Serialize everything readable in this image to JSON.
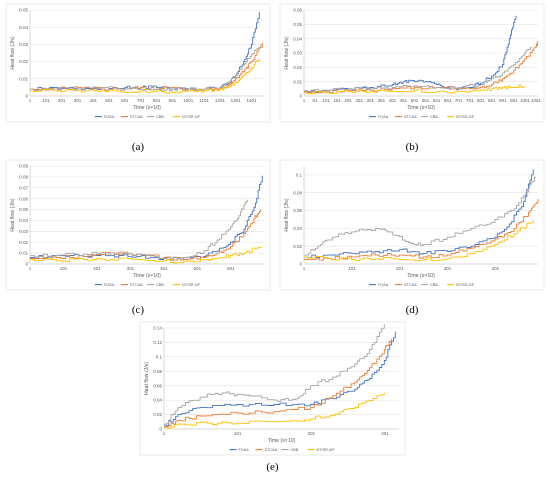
{
  "colors": {
    "s1": "#4472C4",
    "s2": "#ED7D31",
    "s3": "#A5A5A5",
    "s4": "#FFC000"
  },
  "chart_data": [
    {
      "id": "a",
      "type": "line",
      "label": "(a)",
      "ylabel": "Heat flow (J/s)",
      "xlabel": "Time (s×10)",
      "ylim": [
        0,
        0.05
      ],
      "yticks": [
        0,
        0.01,
        0.02,
        0.03,
        0.04,
        0.05
      ],
      "xlim": [
        1,
        1480
      ],
      "xticks": [
        1,
        101,
        201,
        301,
        401,
        501,
        601,
        701,
        801,
        901,
        1001,
        1101,
        1201,
        1301,
        1401
      ],
      "legend": [
        "FOAA",
        "STCAA",
        "CBB",
        "NT/SR-0/F"
      ],
      "legend_position": "bottom",
      "series": [
        {
          "name": "FOAA",
          "x": [
            1,
            150,
            300,
            450,
            600,
            700,
            800,
            900,
            1000,
            1100,
            1200,
            1250,
            1300,
            1350,
            1400,
            1450
          ],
          "y": [
            0.004,
            0.005,
            0.004,
            0.004,
            0.005,
            0.005,
            0.005,
            0.004,
            0.004,
            0.004,
            0.005,
            0.007,
            0.012,
            0.02,
            0.03,
            0.049
          ]
        },
        {
          "name": "STCAA",
          "x": [
            1,
            150,
            300,
            450,
            600,
            700,
            800,
            900,
            1000,
            1100,
            1200,
            1250,
            1300,
            1350,
            1400,
            1470
          ],
          "y": [
            0.004,
            0.004,
            0.005,
            0.004,
            0.004,
            0.005,
            0.004,
            0.005,
            0.004,
            0.004,
            0.004,
            0.006,
            0.01,
            0.014,
            0.02,
            0.031
          ]
        },
        {
          "name": "CBB",
          "x": [
            1,
            150,
            300,
            450,
            600,
            700,
            800,
            900,
            1000,
            1100,
            1200,
            1250,
            1300,
            1350,
            1400,
            1460
          ],
          "y": [
            0.004,
            0.004,
            0.004,
            0.005,
            0.004,
            0.004,
            0.004,
            0.004,
            0.004,
            0.004,
            0.005,
            0.008,
            0.012,
            0.018,
            0.024,
            0.03
          ]
        },
        {
          "name": "NT/SR-0/F",
          "x": [
            1,
            150,
            300,
            450,
            600,
            700,
            800,
            900,
            1000,
            1100,
            1200,
            1250,
            1300,
            1350,
            1400,
            1450
          ],
          "y": [
            0.003,
            0.003,
            0.003,
            0.003,
            0.002,
            0.003,
            0.003,
            0.002,
            0.003,
            0.003,
            0.004,
            0.005,
            0.008,
            0.012,
            0.016,
            0.022
          ]
        }
      ]
    },
    {
      "id": "b",
      "type": "line",
      "label": "(b)",
      "ylabel": "Heat flow (J/s)",
      "xlabel": "Time (s×10)",
      "ylim": [
        0,
        0.06
      ],
      "yticks": [
        0,
        0.01,
        0.02,
        0.03,
        0.04,
        0.05,
        0.06
      ],
      "xlim": [
        1,
        1060
      ],
      "xticks": [
        1,
        51,
        101,
        151,
        201,
        251,
        301,
        351,
        401,
        451,
        501,
        551,
        601,
        651,
        701,
        751,
        801,
        851,
        901,
        951,
        1001,
        1051
      ],
      "legend": [
        "FOAA",
        "STCAA",
        "CBB",
        "NT/SR-0/F"
      ],
      "legend_position": "bottom",
      "series": [
        {
          "name": "FOAA",
          "x": [
            1,
            100,
            200,
            300,
            400,
            450,
            500,
            550,
            600,
            650,
            700,
            750,
            800,
            850,
            900,
            930,
            960
          ],
          "y": [
            0.003,
            0.004,
            0.005,
            0.006,
            0.008,
            0.01,
            0.01,
            0.01,
            0.008,
            0.006,
            0.005,
            0.006,
            0.009,
            0.014,
            0.022,
            0.04,
            0.056
          ]
        },
        {
          "name": "STCAA",
          "x": [
            1,
            100,
            200,
            300,
            400,
            500,
            600,
            700,
            800,
            850,
            900,
            950,
            1000,
            1050,
            1060
          ],
          "y": [
            0.003,
            0.003,
            0.004,
            0.004,
            0.005,
            0.006,
            0.006,
            0.005,
            0.006,
            0.008,
            0.012,
            0.018,
            0.026,
            0.034,
            0.038
          ]
        },
        {
          "name": "CBB",
          "x": [
            1,
            100,
            200,
            300,
            400,
            500,
            600,
            700,
            800,
            850,
            900,
            950,
            1000,
            1030
          ],
          "y": [
            0.004,
            0.004,
            0.005,
            0.005,
            0.006,
            0.007,
            0.006,
            0.006,
            0.008,
            0.012,
            0.016,
            0.022,
            0.03,
            0.034
          ]
        },
        {
          "name": "NT/SR-0/F",
          "x": [
            1,
            100,
            200,
            300,
            400,
            500,
            600,
            700,
            800,
            850,
            900,
            950,
            1000
          ],
          "y": [
            0.002,
            0.002,
            0.003,
            0.003,
            0.003,
            0.004,
            0.003,
            0.003,
            0.004,
            0.005,
            0.006,
            0.006,
            0.007
          ]
        }
      ]
    },
    {
      "id": "c",
      "type": "line",
      "label": "(c)",
      "ylabel": "Heat flow (J/s)",
      "xlabel": "Time (s×10)",
      "ylim": [
        0,
        0.09
      ],
      "yticks": [
        0,
        0.01,
        0.02,
        0.03,
        0.04,
        0.05,
        0.06,
        0.07,
        0.08,
        0.09
      ],
      "xlim": [
        1,
        700
      ],
      "xticks": [
        1,
        101,
        201,
        301,
        401,
        501,
        601
      ],
      "legend": [
        "FOAA",
        "STCAA",
        "CBB",
        "NT/SR-0/F"
      ],
      "legend_position": "bottom",
      "series": [
        {
          "name": "FOAA",
          "x": [
            1,
            80,
            160,
            240,
            320,
            400,
            460,
            520,
            560,
            600,
            640,
            670,
            695
          ],
          "y": [
            0.006,
            0.008,
            0.007,
            0.008,
            0.007,
            0.005,
            0.004,
            0.007,
            0.012,
            0.02,
            0.032,
            0.052,
            0.081
          ]
        },
        {
          "name": "STCAA",
          "x": [
            1,
            80,
            160,
            240,
            320,
            400,
            460,
            520,
            560,
            600,
            640,
            670,
            690
          ],
          "y": [
            0.005,
            0.006,
            0.007,
            0.01,
            0.009,
            0.006,
            0.004,
            0.006,
            0.01,
            0.016,
            0.028,
            0.042,
            0.05
          ]
        },
        {
          "name": "CBB",
          "x": [
            1,
            80,
            160,
            240,
            320,
            400,
            460,
            520,
            560,
            600,
            630,
            650
          ],
          "y": [
            0.008,
            0.008,
            0.009,
            0.01,
            0.009,
            0.005,
            0.006,
            0.012,
            0.022,
            0.034,
            0.048,
            0.059
          ]
        },
        {
          "name": "NT/SR-0/F",
          "x": [
            1,
            80,
            160,
            240,
            320,
            400,
            460,
            520,
            560,
            600,
            640,
            690
          ],
          "y": [
            0.004,
            0.003,
            0.004,
            0.004,
            0.004,
            0.003,
            0.002,
            0.004,
            0.005,
            0.008,
            0.01,
            0.016
          ]
        }
      ]
    },
    {
      "id": "d",
      "type": "line",
      "label": "(d)",
      "ylabel": "Heat flow (J/s)",
      "xlabel": "Time (s×10)",
      "ylim": [
        0,
        0.11
      ],
      "yticks": [
        0,
        0.02,
        0.04,
        0.06,
        0.08,
        0.1
      ],
      "xlim": [
        1,
        490
      ],
      "xticks": [
        1,
        101,
        201,
        301,
        401
      ],
      "legend": [
        "FOAA",
        "STCAA",
        "CBB",
        "NT/SR-0/F"
      ],
      "legend_position": "bottom",
      "series": [
        {
          "name": "FOAA",
          "x": [
            1,
            50,
            100,
            150,
            200,
            250,
            300,
            350,
            400,
            430,
            460,
            480
          ],
          "y": [
            0.008,
            0.01,
            0.012,
            0.014,
            0.016,
            0.012,
            0.014,
            0.02,
            0.03,
            0.045,
            0.07,
            0.106
          ]
        },
        {
          "name": "STCAA",
          "x": [
            1,
            50,
            100,
            150,
            200,
            250,
            300,
            350,
            400,
            440,
            470,
            490
          ],
          "y": [
            0.005,
            0.006,
            0.008,
            0.01,
            0.01,
            0.008,
            0.01,
            0.018,
            0.028,
            0.04,
            0.058,
            0.073
          ]
        },
        {
          "name": "CBB",
          "x": [
            1,
            30,
            60,
            100,
            150,
            180,
            220,
            250,
            300,
            350,
            400,
            440,
            470,
            485
          ],
          "y": [
            0.01,
            0.02,
            0.03,
            0.036,
            0.04,
            0.036,
            0.024,
            0.022,
            0.03,
            0.04,
            0.05,
            0.062,
            0.085,
            0.098
          ]
        },
        {
          "name": "NT/SR-0/F",
          "x": [
            1,
            50,
            100,
            150,
            200,
            250,
            300,
            350,
            400,
            440,
            480
          ],
          "y": [
            0.008,
            0.006,
            0.005,
            0.006,
            0.005,
            0.005,
            0.006,
            0.012,
            0.022,
            0.034,
            0.05
          ]
        }
      ]
    },
    {
      "id": "e",
      "type": "line",
      "label": "(e)",
      "ylabel": "Heat flow (J/s)",
      "xlabel": "Time (s×10)",
      "ylim": [
        0,
        0.14
      ],
      "yticks": [
        0,
        0.02,
        0.04,
        0.06,
        0.08,
        0.1,
        0.12,
        0.14
      ],
      "xlim": [
        1,
        320
      ],
      "xticks": [
        1,
        101,
        201,
        301
      ],
      "legend": [
        "FOAA",
        "STCAA",
        "CBB",
        "NT/SR-0/F"
      ],
      "legend_position": "bottom",
      "series": [
        {
          "name": "FOAA",
          "x": [
            1,
            20,
            50,
            100,
            150,
            200,
            230,
            260,
            280,
            300,
            315
          ],
          "y": [
            0.004,
            0.02,
            0.03,
            0.034,
            0.034,
            0.034,
            0.042,
            0.055,
            0.07,
            0.095,
            0.135
          ]
        },
        {
          "name": "STCAA",
          "x": [
            1,
            20,
            50,
            100,
            150,
            200,
            230,
            260,
            280,
            300,
            310
          ],
          "y": [
            0.002,
            0.012,
            0.018,
            0.022,
            0.024,
            0.03,
            0.046,
            0.065,
            0.085,
            0.11,
            0.125
          ]
        },
        {
          "name": "CBB",
          "x": [
            1,
            20,
            50,
            80,
            100,
            150,
            180,
            200,
            230,
            260,
            280,
            300
          ],
          "y": [
            0.006,
            0.03,
            0.044,
            0.05,
            0.048,
            0.04,
            0.042,
            0.06,
            0.072,
            0.09,
            0.11,
            0.145
          ]
        },
        {
          "name": "NT/SR-0/F",
          "x": [
            1,
            30,
            60,
            100,
            150,
            200,
            240,
            270,
            300
          ],
          "y": [
            0.002,
            0.006,
            0.008,
            0.008,
            0.01,
            0.014,
            0.024,
            0.036,
            0.05
          ]
        }
      ]
    }
  ]
}
